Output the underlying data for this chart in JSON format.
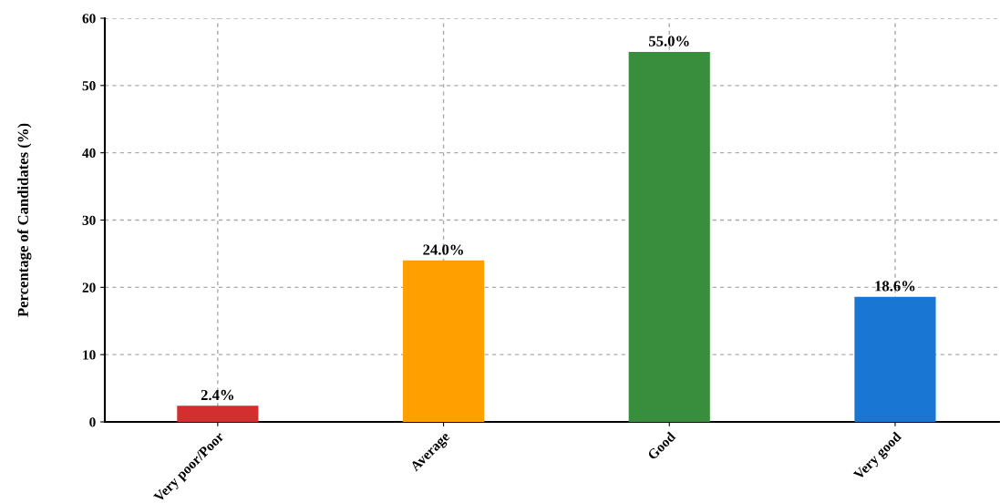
{
  "chart_data": {
    "type": "bar",
    "ylabel": "Percentage of Candidates (%)",
    "categories": [
      "Very poor/Poor",
      "Average",
      "Good",
      "Very good"
    ],
    "values": [
      2.4,
      24.0,
      55.0,
      18.6
    ],
    "colors": [
      "#d32f2f",
      "#ffa000",
      "#388e3c",
      "#1976d2"
    ],
    "value_labels": [
      "2.4%",
      "24.0%",
      "55.0%",
      "18.6%"
    ],
    "ylim": [
      0,
      60
    ],
    "yticks": [
      0,
      10,
      20,
      30,
      40,
      50,
      60
    ],
    "grid": true,
    "legend": false
  }
}
